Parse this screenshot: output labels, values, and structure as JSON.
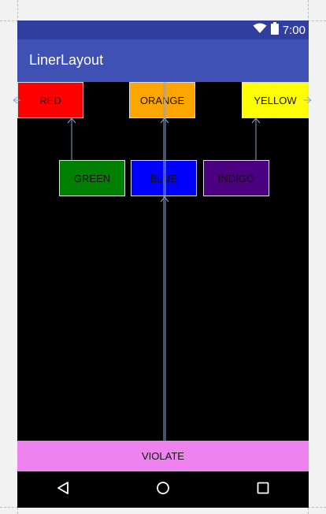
{
  "status_bar": {
    "time": "7:00",
    "icons": [
      "wifi-icon",
      "battery-icon"
    ],
    "color": "#303f9f"
  },
  "app_bar": {
    "title": "LinerLayout",
    "color": "#3f51b5"
  },
  "buttons": {
    "red": {
      "label": "RED",
      "color": "#ff0000"
    },
    "orange": {
      "label": "ORANGE",
      "color": "#ffa500"
    },
    "yellow": {
      "label": "YELLOW",
      "color": "#ffff00"
    },
    "green": {
      "label": "GREEN",
      "color": "#008000"
    },
    "blue": {
      "label": "BLUE",
      "color": "#0000ff"
    },
    "indigo": {
      "label": "INDIGO",
      "color": "#4b0082"
    },
    "violate": {
      "label": "VIOLATE",
      "color": "#ee82ee"
    }
  },
  "nav_bar": {
    "icons": [
      "back-icon",
      "home-icon",
      "recents-icon"
    ]
  }
}
